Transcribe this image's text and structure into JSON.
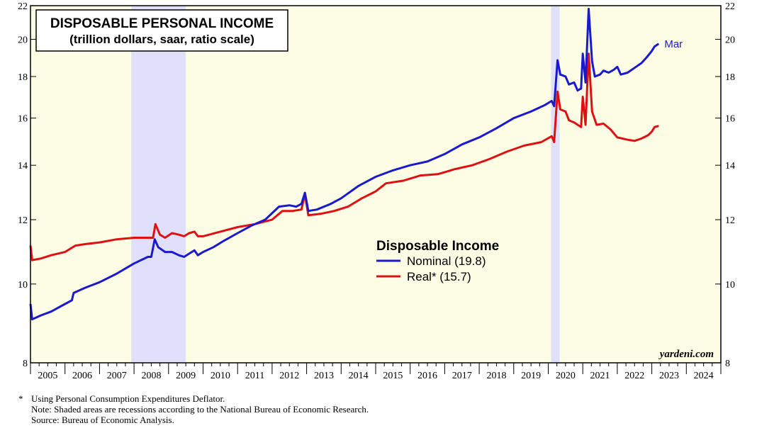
{
  "chart_data": {
    "type": "line",
    "title": "DISPOSABLE PERSONAL INCOME",
    "subtitle": "(trillion dollars, saar, ratio scale)",
    "y_scale": "log",
    "ylim": [
      8,
      22
    ],
    "y_ticks": [
      8,
      10,
      12,
      14,
      16,
      18,
      20,
      22
    ],
    "x_range": [
      2005.0,
      2025.0
    ],
    "x_tick_labels": [
      "2005",
      "2006",
      "2007",
      "2008",
      "2009",
      "2010",
      "2011",
      "2012",
      "2013",
      "2014",
      "2015",
      "2016",
      "2017",
      "2018",
      "2019",
      "2020",
      "2021",
      "2022",
      "2023",
      "2024"
    ],
    "recessions": [
      [
        2007.92,
        2009.5
      ],
      [
        2020.08,
        2020.33
      ]
    ],
    "legend": {
      "title": "Disposable Income",
      "items": [
        "Nominal (19.8)",
        "Real* (15.7)"
      ]
    },
    "end_label": "Mar",
    "watermark": "yardeni.com",
    "colors": {
      "nominal": "#1a1acc",
      "real": "#dd1111",
      "recession": "#e0e0fa",
      "background": "#fdfde6"
    },
    "series": [
      {
        "name": "Nominal",
        "color": "#1a1acc",
        "points": [
          [
            2005.0,
            9.45
          ],
          [
            2005.05,
            9.05
          ],
          [
            2005.3,
            9.15
          ],
          [
            2005.6,
            9.25
          ],
          [
            2006.0,
            9.45
          ],
          [
            2006.2,
            9.55
          ],
          [
            2006.25,
            9.75
          ],
          [
            2006.6,
            9.9
          ],
          [
            2007.0,
            10.05
          ],
          [
            2007.5,
            10.3
          ],
          [
            2008.0,
            10.6
          ],
          [
            2008.4,
            10.8
          ],
          [
            2008.5,
            10.8
          ],
          [
            2008.6,
            11.35
          ],
          [
            2008.7,
            11.1
          ],
          [
            2008.9,
            10.95
          ],
          [
            2009.1,
            10.95
          ],
          [
            2009.3,
            10.85
          ],
          [
            2009.45,
            10.8
          ],
          [
            2009.6,
            10.9
          ],
          [
            2009.75,
            11.0
          ],
          [
            2009.85,
            10.85
          ],
          [
            2010.0,
            10.95
          ],
          [
            2010.3,
            11.1
          ],
          [
            2010.6,
            11.3
          ],
          [
            2011.0,
            11.55
          ],
          [
            2011.4,
            11.8
          ],
          [
            2011.8,
            12.0
          ],
          [
            2012.2,
            12.45
          ],
          [
            2012.5,
            12.5
          ],
          [
            2012.7,
            12.45
          ],
          [
            2012.85,
            12.55
          ],
          [
            2012.95,
            12.95
          ],
          [
            2013.05,
            12.3
          ],
          [
            2013.3,
            12.35
          ],
          [
            2013.7,
            12.55
          ],
          [
            2014.0,
            12.75
          ],
          [
            2014.5,
            13.2
          ],
          [
            2015.0,
            13.55
          ],
          [
            2015.5,
            13.8
          ],
          [
            2016.0,
            14.0
          ],
          [
            2016.5,
            14.15
          ],
          [
            2017.0,
            14.45
          ],
          [
            2017.5,
            14.85
          ],
          [
            2018.0,
            15.15
          ],
          [
            2018.5,
            15.55
          ],
          [
            2019.0,
            16.0
          ],
          [
            2019.5,
            16.3
          ],
          [
            2019.9,
            16.6
          ],
          [
            2020.1,
            16.8
          ],
          [
            2020.17,
            16.55
          ],
          [
            2020.27,
            18.85
          ],
          [
            2020.35,
            18.1
          ],
          [
            2020.5,
            18.0
          ],
          [
            2020.6,
            17.6
          ],
          [
            2020.75,
            17.7
          ],
          [
            2020.85,
            17.3
          ],
          [
            2020.95,
            17.4
          ],
          [
            2021.0,
            19.2
          ],
          [
            2021.08,
            17.7
          ],
          [
            2021.17,
            21.8
          ],
          [
            2021.27,
            18.8
          ],
          [
            2021.35,
            18.0
          ],
          [
            2021.5,
            18.1
          ],
          [
            2021.6,
            18.3
          ],
          [
            2021.75,
            18.2
          ],
          [
            2021.9,
            18.35
          ],
          [
            2022.0,
            18.5
          ],
          [
            2022.1,
            18.1
          ],
          [
            2022.3,
            18.2
          ],
          [
            2022.5,
            18.45
          ],
          [
            2022.7,
            18.7
          ],
          [
            2022.85,
            19.0
          ],
          [
            2023.0,
            19.35
          ],
          [
            2023.08,
            19.6
          ],
          [
            2023.2,
            19.75
          ]
        ]
      },
      {
        "name": "Real",
        "color": "#dd1111",
        "points": [
          [
            2005.0,
            11.15
          ],
          [
            2005.05,
            10.7
          ],
          [
            2005.3,
            10.75
          ],
          [
            2005.6,
            10.85
          ],
          [
            2006.0,
            10.95
          ],
          [
            2006.3,
            11.15
          ],
          [
            2006.6,
            11.2
          ],
          [
            2007.0,
            11.25
          ],
          [
            2007.5,
            11.35
          ],
          [
            2008.0,
            11.4
          ],
          [
            2008.4,
            11.4
          ],
          [
            2008.55,
            11.4
          ],
          [
            2008.62,
            11.85
          ],
          [
            2008.75,
            11.5
          ],
          [
            2008.9,
            11.4
          ],
          [
            2009.1,
            11.55
          ],
          [
            2009.3,
            11.5
          ],
          [
            2009.45,
            11.45
          ],
          [
            2009.6,
            11.55
          ],
          [
            2009.75,
            11.6
          ],
          [
            2009.85,
            11.45
          ],
          [
            2010.0,
            11.45
          ],
          [
            2010.5,
            11.6
          ],
          [
            2011.0,
            11.75
          ],
          [
            2011.5,
            11.85
          ],
          [
            2012.0,
            12.0
          ],
          [
            2012.3,
            12.3
          ],
          [
            2012.6,
            12.3
          ],
          [
            2012.85,
            12.35
          ],
          [
            2012.95,
            12.9
          ],
          [
            2013.05,
            12.15
          ],
          [
            2013.4,
            12.2
          ],
          [
            2013.8,
            12.3
          ],
          [
            2014.2,
            12.45
          ],
          [
            2014.6,
            12.75
          ],
          [
            2015.0,
            13.0
          ],
          [
            2015.3,
            13.3
          ],
          [
            2015.8,
            13.4
          ],
          [
            2016.3,
            13.6
          ],
          [
            2016.8,
            13.65
          ],
          [
            2017.3,
            13.85
          ],
          [
            2017.8,
            14.0
          ],
          [
            2018.3,
            14.25
          ],
          [
            2018.8,
            14.55
          ],
          [
            2019.3,
            14.8
          ],
          [
            2019.8,
            14.95
          ],
          [
            2020.1,
            15.2
          ],
          [
            2020.17,
            14.95
          ],
          [
            2020.27,
            17.25
          ],
          [
            2020.35,
            16.4
          ],
          [
            2020.5,
            16.3
          ],
          [
            2020.6,
            15.9
          ],
          [
            2020.75,
            15.8
          ],
          [
            2020.95,
            15.6
          ],
          [
            2021.0,
            17.0
          ],
          [
            2021.08,
            15.7
          ],
          [
            2021.17,
            19.2
          ],
          [
            2021.27,
            16.3
          ],
          [
            2021.4,
            15.7
          ],
          [
            2021.6,
            15.75
          ],
          [
            2021.8,
            15.5
          ],
          [
            2022.0,
            15.15
          ],
          [
            2022.3,
            15.05
          ],
          [
            2022.5,
            15.0
          ],
          [
            2022.7,
            15.1
          ],
          [
            2022.9,
            15.25
          ],
          [
            2023.0,
            15.4
          ],
          [
            2023.08,
            15.6
          ],
          [
            2023.2,
            15.65
          ]
        ]
      }
    ]
  },
  "footnotes": {
    "star": "*",
    "line1": "Using Personal Consumption Expenditures Deflator.",
    "line2": "Note: Shaded areas are recessions according to the National Bureau of Economic Research.",
    "line3": "Source: Bureau of Economic Analysis."
  }
}
